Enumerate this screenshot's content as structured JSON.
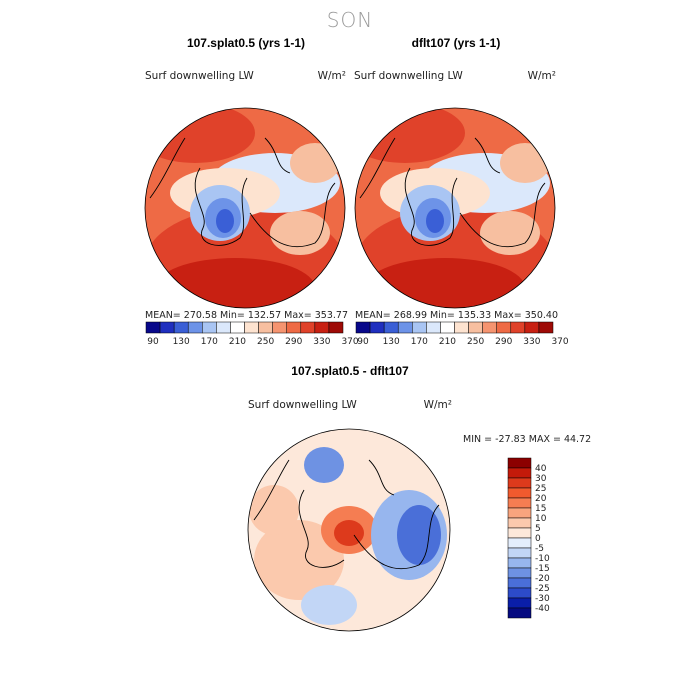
{
  "season": "SON",
  "colors": {
    "cold": [
      "#08088a",
      "#1f2fbf",
      "#3a5fd6",
      "#6d93e8",
      "#a9c5f3",
      "#dbe8fb"
    ],
    "warm": [
      "#fde3d0",
      "#f7bfa0",
      "#f59470",
      "#ee6a45",
      "#e0422a",
      "#c82012",
      "#9e0a06"
    ],
    "coast": "#000000",
    "cb_labels": [
      "90",
      "130",
      "170",
      "210",
      "250",
      "290",
      "330",
      "370"
    ],
    "diff_levels": [
      {
        "label": "40",
        "color": "#8c0000"
      },
      {
        "label": "30",
        "color": "#c41a0a"
      },
      {
        "label": "25",
        "color": "#dd3a1c"
      },
      {
        "label": "20",
        "color": "#f05a2e"
      },
      {
        "label": "15",
        "color": "#f57d52"
      },
      {
        "label": "10",
        "color": "#f8a47e"
      },
      {
        "label": "5",
        "color": "#fbc9ad"
      },
      {
        "label": "0",
        "color": "#fde8da"
      },
      {
        "label": "-5",
        "color": "#e4eefc"
      },
      {
        "label": "-10",
        "color": "#c2d6f6"
      },
      {
        "label": "-15",
        "color": "#97b6ee"
      },
      {
        "label": "-20",
        "color": "#6e92e3"
      },
      {
        "label": "-25",
        "color": "#4a6fd8"
      },
      {
        "label": "-30",
        "color": "#2c4bc9"
      },
      {
        "label": "-40",
        "color": "#0a1ea8"
      },
      {
        "label": "",
        "color": "#050a80"
      }
    ]
  },
  "chart_data": [
    {
      "type": "heatmap",
      "projection": "polar-stereographic-north",
      "title": "107.splat0.5 (yrs 1-1)",
      "variable": "Surf downwelling LW",
      "units": "W/m²",
      "mean": "270.58",
      "min": "132.57",
      "max": "353.77",
      "stats_text": "MEAN= 270.58 Min= 132.57 Max= 353.77",
      "levels": [
        90,
        110,
        130,
        150,
        170,
        190,
        210,
        230,
        250,
        270,
        290,
        310,
        330,
        350,
        370
      ]
    },
    {
      "type": "heatmap",
      "projection": "polar-stereographic-north",
      "title": "dflt107 (yrs 1-1)",
      "variable": "Surf downwelling LW",
      "units": "W/m²",
      "mean": "268.99",
      "min": "135.33",
      "max": "350.40",
      "stats_text": "MEAN= 268.99 Min= 135.33 Max= 350.40",
      "levels": [
        90,
        110,
        130,
        150,
        170,
        190,
        210,
        230,
        250,
        270,
        290,
        310,
        330,
        350,
        370
      ]
    },
    {
      "type": "heatmap",
      "projection": "polar-stereographic-north",
      "title": "107.splat0.5 - dflt107",
      "variable": "Surf downwelling LW",
      "units": "W/m²",
      "min": "-27.83",
      "max": "44.72",
      "stats_text": "MIN = -27.83 MAX = 44.72",
      "levels": [
        -40,
        -30,
        -25,
        -20,
        -15,
        -10,
        -5,
        0,
        5,
        10,
        15,
        20,
        25,
        30,
        40
      ]
    }
  ]
}
